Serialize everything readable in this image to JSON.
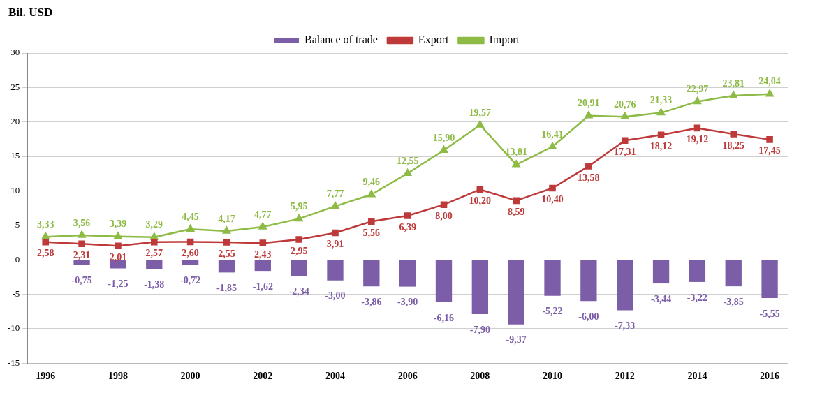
{
  "chart_data": {
    "type": "bar",
    "ylabel": "Bil. USD",
    "categories": [
      "1996",
      null,
      "1998",
      null,
      "2000",
      null,
      "2002",
      null,
      "2004",
      null,
      "2006",
      null,
      "2008",
      null,
      "2010",
      null,
      "2012",
      null,
      "2014",
      null,
      "2016"
    ],
    "series": [
      {
        "name": "Balance of trade",
        "color": "#7b5ea7",
        "values": [
          null,
          -0.75,
          -1.25,
          -1.38,
          -0.72,
          -1.85,
          -1.62,
          -2.34,
          -3.0,
          -3.86,
          -3.9,
          -6.16,
          -7.9,
          -9.37,
          -5.22,
          -6.0,
          -7.33,
          -3.44,
          -3.22,
          -3.85,
          -5.55
        ],
        "value_labels": [
          null,
          "-0,75",
          "-1,25",
          "-1,38",
          "-0,72",
          "-1,85",
          "-1,62",
          "-2,34",
          "-3,00",
          "-3,86",
          "-3,90",
          "-6,16",
          "-7,90",
          "-9,37",
          "-5,22",
          "-6,00",
          "-7,33",
          "-3,44",
          "-3,22",
          "-3,85",
          "-5,55"
        ]
      },
      {
        "name": "Export",
        "type": "line",
        "marker": "square",
        "color": "#be3a3a",
        "values": [
          2.58,
          2.31,
          2.01,
          2.57,
          2.6,
          2.55,
          2.43,
          2.95,
          3.91,
          5.56,
          6.39,
          8.0,
          10.2,
          8.59,
          10.4,
          13.58,
          17.31,
          18.12,
          19.12,
          18.25,
          17.45
        ],
        "value_labels": [
          "2,58",
          "2,31",
          "2,01",
          "2,57",
          "2,60",
          "2,55",
          "2,43",
          "2,95",
          "3,91",
          "5,56",
          "6,39",
          "8,00",
          "10,20",
          "8,59",
          "10,40",
          "13,58",
          "17,31",
          "18,12",
          "19,12",
          "18,25",
          "17,45"
        ]
      },
      {
        "name": "Import",
        "type": "line",
        "marker": "triangle",
        "color": "#8dbb45",
        "values": [
          3.33,
          3.56,
          3.39,
          3.29,
          4.45,
          4.17,
          4.77,
          5.95,
          7.77,
          9.46,
          12.55,
          15.9,
          19.57,
          13.81,
          16.41,
          20.91,
          20.76,
          21.33,
          22.97,
          23.81,
          24.04
        ],
        "value_labels": [
          "3,33",
          "3,56",
          "3,39",
          "3,29",
          "4,45",
          "4,17",
          "4,77",
          "5,95",
          "7,77",
          "9,46",
          "12,55",
          "15,90",
          "19,57",
          "13,81",
          "16,41",
          "20,91",
          "20,76",
          "21,33",
          "22,97",
          "23,81",
          "24,04"
        ]
      }
    ],
    "ylim": [
      -15,
      30
    ],
    "yticks": [
      -15,
      -10,
      -5,
      0,
      5,
      10,
      15,
      20,
      25,
      30
    ],
    "grid": "y",
    "legend": "top"
  }
}
